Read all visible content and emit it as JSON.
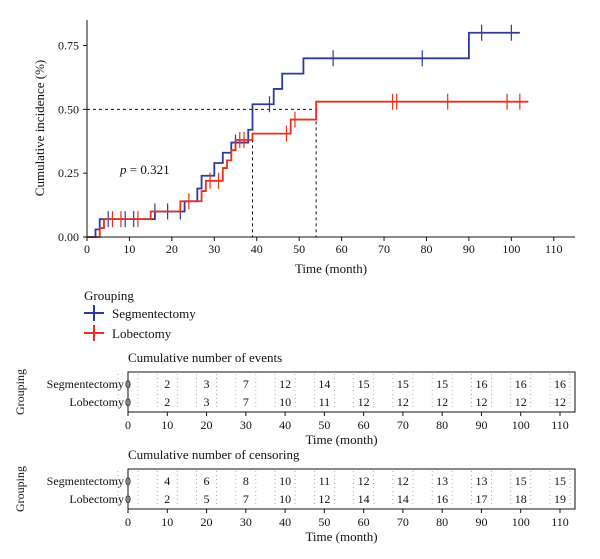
{
  "chart_data": [
    {
      "type": "line",
      "subtype": "cumulative-incidence-step",
      "xlabel": "Time (month)",
      "ylabel": "Cumulative incidence (%)",
      "xlim": [
        0,
        115
      ],
      "ylim": [
        0,
        0.85
      ],
      "xticks": [
        0,
        10,
        20,
        30,
        40,
        50,
        60,
        70,
        80,
        90,
        100,
        110
      ],
      "yticks": [
        "0.00",
        "0.25",
        "0.50",
        "0.75"
      ],
      "yticks_values": [
        0,
        0.25,
        0.5,
        0.75
      ],
      "annotation": {
        "prefix": "p",
        "text": " = 0.321"
      },
      "reference_lines": [
        {
          "y": 0.5,
          "x_end": 54,
          "style": "dashed"
        },
        {
          "x": 39,
          "y_end": 0.5,
          "style": "dashed"
        },
        {
          "x": 54,
          "y_end": 0.5,
          "style": "dashed"
        }
      ],
      "series": [
        {
          "name": "Segmentectomy",
          "color": "#2b3a9c",
          "steps": [
            [
              0,
              0
            ],
            [
              2,
              0.03
            ],
            [
              3,
              0.07
            ],
            [
              16,
              0.1
            ],
            [
              23,
              0.14
            ],
            [
              26,
              0.19
            ],
            [
              27,
              0.24
            ],
            [
              30,
              0.29
            ],
            [
              32,
              0.33
            ],
            [
              34,
              0.37
            ],
            [
              38,
              0.42
            ],
            [
              39,
              0.52
            ],
            [
              44,
              0.58
            ],
            [
              46,
              0.64
            ],
            [
              51,
              0.7
            ],
            [
              90,
              0.8
            ],
            [
              102,
              0.8
            ]
          ],
          "censor_times": [
            5,
            9,
            11,
            16,
            19,
            22,
            35,
            43,
            58,
            79,
            93,
            100
          ]
        },
        {
          "name": "Lobectomy",
          "color": "#e8301a",
          "steps": [
            [
              0,
              0
            ],
            [
              3,
              0.035
            ],
            [
              4,
              0.07
            ],
            [
              15,
              0.1
            ],
            [
              22,
              0.14
            ],
            [
              27,
              0.18
            ],
            [
              28,
              0.22
            ],
            [
              32,
              0.27
            ],
            [
              33,
              0.3
            ],
            [
              34,
              0.34
            ],
            [
              35,
              0.38
            ],
            [
              39,
              0.405
            ],
            [
              48,
              0.46
            ],
            [
              54,
              0.53
            ],
            [
              104,
              0.53
            ]
          ],
          "censor_times": [
            6,
            8,
            12,
            24,
            29,
            31,
            36,
            37,
            47,
            49,
            72,
            73,
            85,
            99,
            102
          ]
        }
      ]
    },
    {
      "type": "table",
      "title": "Cumulative number of events",
      "ylabel": "Grouping",
      "xlabel": "Time (month)",
      "x": [
        0,
        10,
        20,
        30,
        40,
        50,
        60,
        70,
        80,
        90,
        100,
        110
      ],
      "rows": [
        {
          "name": "Segmentectomy",
          "values": [
            "0",
            "2",
            "3",
            "7",
            "12",
            "14",
            "15",
            "15",
            "15",
            "16",
            "16",
            "16"
          ]
        },
        {
          "name": "Lobectomy",
          "values": [
            "0",
            "2",
            "3",
            "7",
            "10",
            "11",
            "12",
            "12",
            "12",
            "12",
            "12",
            "12"
          ]
        }
      ]
    },
    {
      "type": "table",
      "title": "Cumulative number of censoring",
      "ylabel": "Grouping",
      "xlabel": "Time (month)",
      "x": [
        0,
        10,
        20,
        30,
        40,
        50,
        60,
        70,
        80,
        90,
        100,
        110
      ],
      "rows": [
        {
          "name": "Segmentectomy",
          "values": [
            "0",
            "4",
            "6",
            "8",
            "10",
            "11",
            "12",
            "12",
            "13",
            "13",
            "15",
            "15"
          ]
        },
        {
          "name": "Lobectomy",
          "values": [
            "0",
            "2",
            "5",
            "7",
            "10",
            "12",
            "14",
            "14",
            "16",
            "17",
            "18",
            "19"
          ]
        }
      ]
    }
  ],
  "legend": {
    "title": "Grouping",
    "items": [
      {
        "label": "Segmentectomy",
        "color": "#2b3a9c"
      },
      {
        "label": "Lobectomy",
        "color": "#e8301a"
      }
    ]
  }
}
